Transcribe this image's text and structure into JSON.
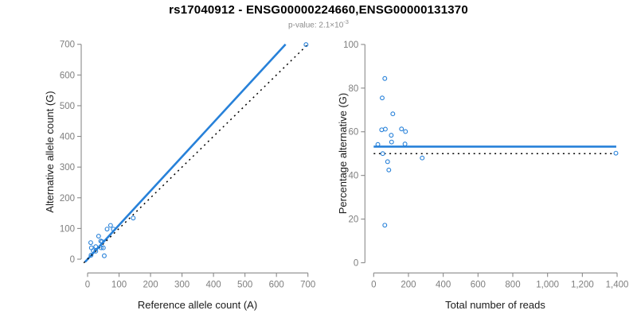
{
  "header": {
    "title": "rs17040912 - ENSG00000224660,ENSG00000131370",
    "subtitle_prefix": "p-value: 2.1×10",
    "subtitle_exponent": "-3",
    "subtitle_full": "p-value: 2.1×10^-3"
  },
  "colors": {
    "series_blue": "#2781d9",
    "reference_black": "#000000",
    "axis_gray": "#8a8a8a",
    "tick_label_gray": "#7e7e7e",
    "axis_title_color": "#1a1a1a",
    "title_color": "#000000",
    "subtitle_gray": "#8c8c8c",
    "background": "#ffffff"
  },
  "chart_data": [
    {
      "type": "scatter",
      "panel": "allele-counts",
      "title": "rs17040912 - ENSG00000224660,ENSG00000131370",
      "subtitle": "p-value: 2.1×10^-3",
      "xlabel": "Reference allele count (A)",
      "ylabel": "Alternative allele count (G)",
      "xlim": [
        0,
        700
      ],
      "ylim": [
        0,
        700
      ],
      "grid": false,
      "legend": "none",
      "x_ticks": {
        "values": [
          0,
          100,
          200,
          300,
          400,
          500,
          600,
          700
        ],
        "labels": [
          "0",
          "100",
          "200",
          "300",
          "400",
          "500",
          "600",
          "700"
        ]
      },
      "y_ticks": {
        "values": [
          0,
          100,
          200,
          300,
          400,
          500,
          600,
          700
        ],
        "labels": [
          "0",
          "100",
          "200",
          "300",
          "400",
          "500",
          "600",
          "700"
        ]
      },
      "points": [
        {
          "x": 10,
          "y": 54
        },
        {
          "x": 12,
          "y": 37
        },
        {
          "x": 35,
          "y": 75
        },
        {
          "x": 62,
          "y": 98
        },
        {
          "x": 73,
          "y": 110
        },
        {
          "x": 26,
          "y": 41
        },
        {
          "x": 18,
          "y": 28
        },
        {
          "x": 42,
          "y": 59
        },
        {
          "x": 46,
          "y": 57
        },
        {
          "x": 11,
          "y": 13
        },
        {
          "x": 82,
          "y": 98
        },
        {
          "x": 26,
          "y": 26
        },
        {
          "x": 145,
          "y": 134
        },
        {
          "x": 43,
          "y": 37
        },
        {
          "x": 50,
          "y": 37
        },
        {
          "x": 53,
          "y": 11
        },
        {
          "x": 694,
          "y": 699
        }
      ],
      "lines": [
        {
          "name": "fitted-ratio-line",
          "style": "solid",
          "x1": -8,
          "y1": -9,
          "x2": 629,
          "y2": 700
        },
        {
          "name": "identity-line",
          "style": "dotted",
          "x1": -12,
          "y1": -12,
          "x2": 698,
          "y2": 698
        }
      ]
    },
    {
      "type": "scatter",
      "panel": "percentage-alternative",
      "xlabel": "Total number of reads",
      "ylabel": "Percentage alternative (G)",
      "xlim": [
        0,
        1400
      ],
      "ylim": [
        0,
        100
      ],
      "grid": false,
      "legend": "none",
      "x_ticks": {
        "values": [
          0,
          200,
          400,
          600,
          800,
          1000,
          1200,
          1400
        ],
        "labels": [
          "0",
          "200",
          "400",
          "600",
          "800",
          "1,000",
          "1,200",
          "1,400"
        ]
      },
      "y_ticks": {
        "values": [
          0,
          20,
          40,
          60,
          80,
          100
        ],
        "labels": [
          "0",
          "20",
          "40",
          "60",
          "80",
          "100"
        ]
      },
      "points": [
        {
          "x": 64,
          "y": 84.4
        },
        {
          "x": 49,
          "y": 75.5
        },
        {
          "x": 110,
          "y": 68.2
        },
        {
          "x": 160,
          "y": 61.3
        },
        {
          "x": 183,
          "y": 60.1
        },
        {
          "x": 67,
          "y": 61.2
        },
        {
          "x": 46,
          "y": 60.9
        },
        {
          "x": 101,
          "y": 58.4
        },
        {
          "x": 103,
          "y": 55.3
        },
        {
          "x": 24,
          "y": 54.2
        },
        {
          "x": 180,
          "y": 54.4
        },
        {
          "x": 52,
          "y": 50
        },
        {
          "x": 279,
          "y": 48
        },
        {
          "x": 80,
          "y": 46.3
        },
        {
          "x": 87,
          "y": 42.5
        },
        {
          "x": 64,
          "y": 17.2
        },
        {
          "x": 1393,
          "y": 50.2
        }
      ],
      "lines": [
        {
          "name": "fitted-ratio-line",
          "style": "solid",
          "x1": 0,
          "y1": 53.2,
          "x2": 1395,
          "y2": 53.2
        },
        {
          "name": "expected-50pct-line",
          "style": "dotted",
          "x1": 0,
          "y1": 50,
          "x2": 1378,
          "y2": 50
        }
      ]
    }
  ]
}
